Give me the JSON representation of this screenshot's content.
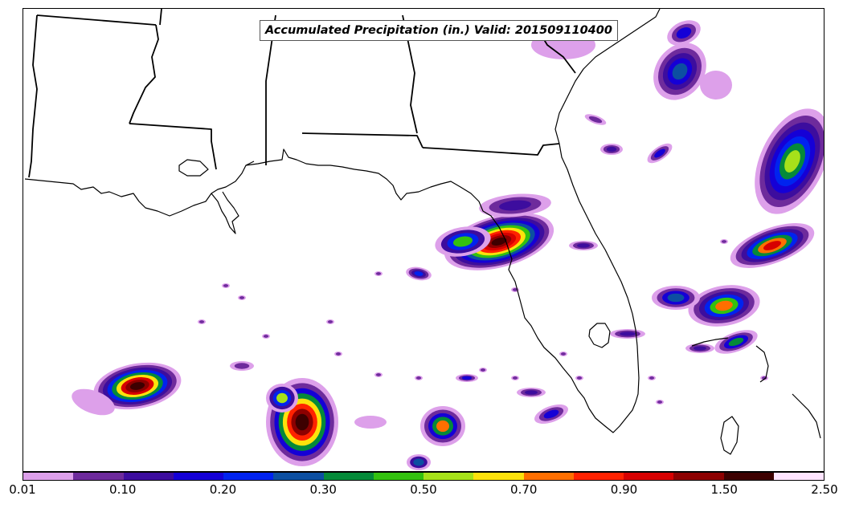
{
  "title": "Accumulated Precipitation (in.) Valid: 201509110400",
  "colorbar": {
    "colors": [
      "#dda0ea",
      "#6e2b9c",
      "#3d0d9e",
      "#1500d6",
      "#0023ef",
      "#0c4fa1",
      "#058a39",
      "#33c10f",
      "#a6e11a",
      "#fde20c",
      "#ff6f00",
      "#ff2200",
      "#d70000",
      "#8d0000",
      "#3d0000",
      "#ffe4ff"
    ],
    "tick_labels": [
      "0.01",
      "0.10",
      "0.20",
      "0.30",
      "0.50",
      "0.70",
      "0.90",
      "1.50",
      "2.50"
    ]
  },
  "map": {
    "type": "precipitation accumulation map",
    "region_shown": "Northern Gulf of Mexico, Louisiana, Mississippi, Alabama, Georgia, Florida"
  }
}
